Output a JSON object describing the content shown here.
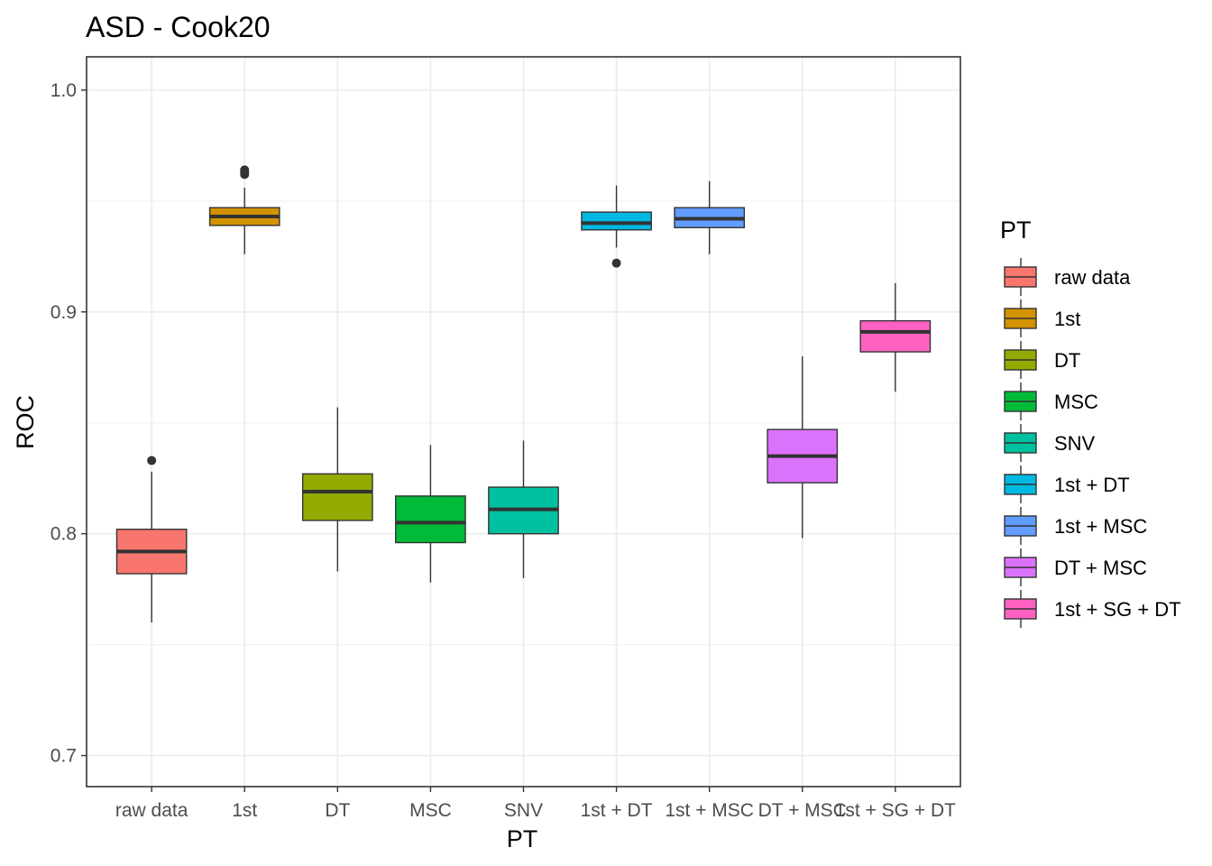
{
  "chart_data": {
    "type": "boxplot",
    "title": "ASD - Cook20",
    "xlabel": "PT",
    "ylabel": "ROC",
    "ylim": [
      0.686,
      1.015
    ],
    "yticks": [
      0.7,
      0.8,
      0.9,
      1.0
    ],
    "ytick_labels": [
      "0.7",
      "0.8",
      "0.9",
      "1.0"
    ],
    "grid": true,
    "legend": {
      "title": "PT",
      "position": "right"
    },
    "categories": [
      "raw data",
      "1st",
      "DT",
      "MSC",
      "SNV",
      "1st + DT",
      "1st + MSC",
      "DT + MSC",
      "1st + SG + DT"
    ],
    "series": [
      {
        "name": "raw data",
        "color": "#F8766D",
        "whisker_low": 0.76,
        "q1": 0.782,
        "median": 0.792,
        "q3": 0.802,
        "whisker_high": 0.828,
        "outliers": [
          0.833
        ]
      },
      {
        "name": "1st",
        "color": "#D39200",
        "whisker_low": 0.926,
        "q1": 0.939,
        "median": 0.943,
        "q3": 0.947,
        "whisker_high": 0.956,
        "outliers": [
          0.962,
          0.963,
          0.964
        ]
      },
      {
        "name": "DT",
        "color": "#93AA00",
        "whisker_low": 0.783,
        "q1": 0.806,
        "median": 0.819,
        "q3": 0.827,
        "whisker_high": 0.857,
        "outliers": []
      },
      {
        "name": "MSC",
        "color": "#00BA38",
        "whisker_low": 0.778,
        "q1": 0.796,
        "median": 0.805,
        "q3": 0.817,
        "whisker_high": 0.84,
        "outliers": []
      },
      {
        "name": "SNV",
        "color": "#00C19F",
        "whisker_low": 0.78,
        "q1": 0.8,
        "median": 0.811,
        "q3": 0.821,
        "whisker_high": 0.842,
        "outliers": []
      },
      {
        "name": "1st + DT",
        "color": "#00B9E3",
        "whisker_low": 0.929,
        "q1": 0.937,
        "median": 0.94,
        "q3": 0.945,
        "whisker_high": 0.957,
        "outliers": [
          0.922
        ]
      },
      {
        "name": "1st + MSC",
        "color": "#619CFF",
        "whisker_low": 0.926,
        "q1": 0.938,
        "median": 0.942,
        "q3": 0.947,
        "whisker_high": 0.959,
        "outliers": []
      },
      {
        "name": "DT + MSC",
        "color": "#DB72FB",
        "whisker_low": 0.798,
        "q1": 0.823,
        "median": 0.835,
        "q3": 0.847,
        "whisker_high": 0.88,
        "outliers": []
      },
      {
        "name": "1st + SG + DT",
        "color": "#FF61C3",
        "whisker_low": 0.864,
        "q1": 0.882,
        "median": 0.891,
        "q3": 0.896,
        "whisker_high": 0.913,
        "outliers": []
      }
    ]
  }
}
